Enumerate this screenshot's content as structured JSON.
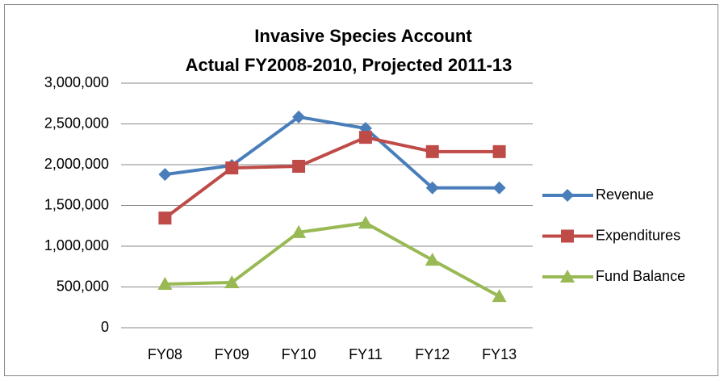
{
  "chart_data": {
    "type": "line",
    "title": "Invasive Species Account",
    "subtitle": "Actual FY2008-2010, Projected 2011-13",
    "categories": [
      "FY08",
      "FY09",
      "FY10",
      "FY11",
      "FY12",
      "FY13"
    ],
    "series": [
      {
        "name": "Revenue",
        "color": "#4a7ebb",
        "marker": "diamond",
        "values": [
          1880000,
          1990000,
          2585000,
          2445000,
          1715000,
          1715000
        ]
      },
      {
        "name": "Expenditures",
        "color": "#be4b48",
        "marker": "square",
        "values": [
          1345000,
          1960000,
          1980000,
          2335000,
          2160000,
          2160000
        ]
      },
      {
        "name": "Fund Balance",
        "color": "#98b954",
        "marker": "triangle",
        "values": [
          535000,
          555000,
          1170000,
          1285000,
          830000,
          385000
        ]
      }
    ],
    "ylim": [
      0,
      3000000
    ],
    "yticks": [
      0,
      {
        "value": 500000,
        "label": "500,000"
      },
      {
        "value": 1000000,
        "label": "1,000,000"
      },
      {
        "value": 1500000,
        "label": "1,500,000"
      },
      {
        "value": 2000000,
        "label": "2,000,000"
      },
      {
        "value": 2500000,
        "label": "2,500,000"
      },
      {
        "value": 3000000,
        "label": "3,000,000"
      }
    ],
    "grid": true,
    "legend": "right"
  }
}
